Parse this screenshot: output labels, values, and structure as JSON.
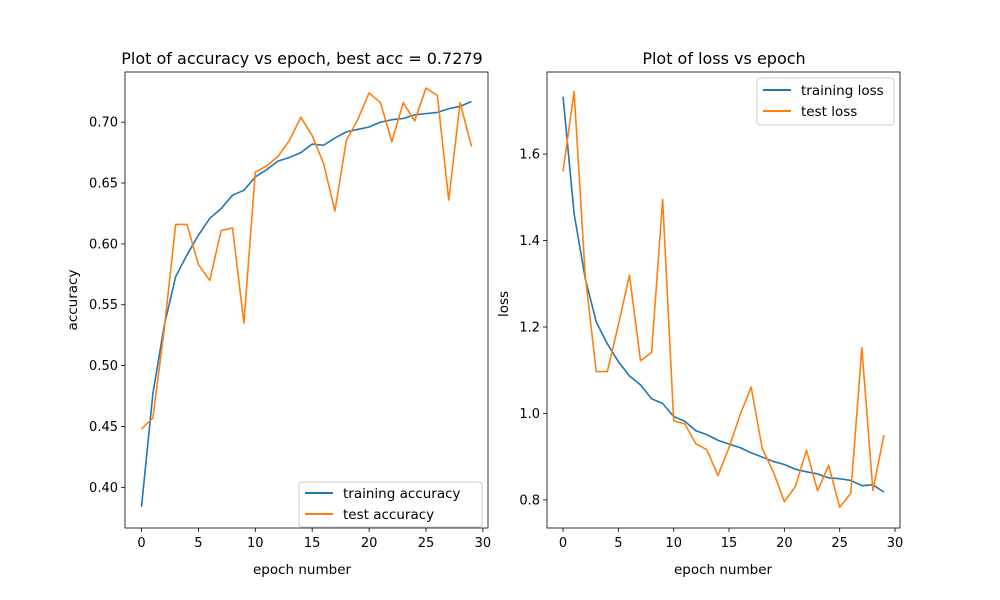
{
  "chart_data": [
    {
      "type": "line",
      "title": "Plot of accuracy vs epoch, best acc = 0.7279",
      "xlabel": "epoch number",
      "ylabel": "accuracy",
      "xlim": [
        -1.45,
        30.45
      ],
      "ylim": [
        0.3666,
        0.7412
      ],
      "xticks": [
        0,
        5,
        10,
        15,
        20,
        25,
        30
      ],
      "xtick_labels": [
        "0",
        "5",
        "10",
        "15",
        "20",
        "25",
        "30"
      ],
      "yticks": [
        0.4,
        0.45,
        0.5,
        0.55,
        0.6,
        0.65,
        0.7
      ],
      "ytick_labels": [
        "0.40",
        "0.45",
        "0.50",
        "0.55",
        "0.60",
        "0.65",
        "0.70"
      ],
      "grid": false,
      "legend_position": "lower-right",
      "x": [
        0,
        1,
        2,
        3,
        4,
        5,
        6,
        7,
        8,
        9,
        10,
        11,
        12,
        13,
        14,
        15,
        16,
        17,
        18,
        19,
        20,
        21,
        22,
        23,
        24,
        25,
        26,
        27,
        28,
        29
      ],
      "series": [
        {
          "name": "training accuracy",
          "color": "#1f77b4",
          "values": [
            0.384,
            0.477,
            0.533,
            0.573,
            0.591,
            0.607,
            0.621,
            0.629,
            0.64,
            0.644,
            0.655,
            0.661,
            0.668,
            0.671,
            0.675,
            0.682,
            0.681,
            0.687,
            0.692,
            0.694,
            0.696,
            0.7,
            0.702,
            0.703,
            0.706,
            0.707,
            0.708,
            0.711,
            0.713,
            0.717
          ]
        },
        {
          "name": "test accuracy",
          "color": "#ff7f0e",
          "values": [
            0.448,
            0.457,
            0.53,
            0.616,
            0.616,
            0.583,
            0.57,
            0.611,
            0.613,
            0.535,
            0.659,
            0.664,
            0.672,
            0.685,
            0.704,
            0.689,
            0.666,
            0.627,
            0.685,
            0.702,
            0.724,
            0.716,
            0.684,
            0.716,
            0.701,
            0.728,
            0.722,
            0.636,
            0.716,
            0.68
          ]
        }
      ]
    },
    {
      "type": "line",
      "title": "Plot of loss vs epoch",
      "xlabel": "epoch number",
      "ylabel": "loss",
      "xlim": [
        -1.45,
        30.45
      ],
      "ylim": [
        0.735,
        1.79
      ],
      "xticks": [
        0,
        5,
        10,
        15,
        20,
        25,
        30
      ],
      "xtick_labels": [
        "0",
        "5",
        "10",
        "15",
        "20",
        "25",
        "30"
      ],
      "yticks": [
        0.8,
        1.0,
        1.2,
        1.4,
        1.6
      ],
      "ytick_labels": [
        "0.8",
        "1.0",
        "1.2",
        "1.4",
        "1.6"
      ],
      "grid": false,
      "legend_position": "upper-right",
      "x": [
        0,
        1,
        2,
        3,
        4,
        5,
        6,
        7,
        8,
        9,
        10,
        11,
        12,
        13,
        14,
        15,
        16,
        17,
        18,
        19,
        20,
        21,
        22,
        23,
        24,
        25,
        26,
        27,
        28,
        29
      ],
      "series": [
        {
          "name": "training loss",
          "color": "#1f77b4",
          "values": [
            1.733,
            1.462,
            1.313,
            1.212,
            1.161,
            1.12,
            1.087,
            1.066,
            1.034,
            1.023,
            0.993,
            0.982,
            0.96,
            0.951,
            0.938,
            0.929,
            0.921,
            0.909,
            0.899,
            0.889,
            0.882,
            0.871,
            0.865,
            0.86,
            0.851,
            0.849,
            0.845,
            0.833,
            0.835,
            0.818
          ]
        },
        {
          "name": "test loss",
          "color": "#ff7f0e",
          "values": [
            1.56,
            1.745,
            1.32,
            1.097,
            1.097,
            1.205,
            1.32,
            1.122,
            1.141,
            1.495,
            0.983,
            0.976,
            0.93,
            0.916,
            0.856,
            0.921,
            0.997,
            1.061,
            0.919,
            0.865,
            0.796,
            0.831,
            0.915,
            0.821,
            0.88,
            0.783,
            0.815,
            1.152,
            0.822,
            0.95
          ]
        }
      ]
    }
  ]
}
